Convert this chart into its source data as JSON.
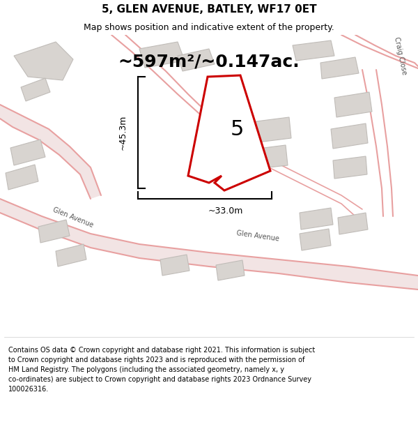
{
  "title": "5, GLEN AVENUE, BATLEY, WF17 0ET",
  "subtitle": "Map shows position and indicative extent of the property.",
  "area_label": "~597m²/~0.147ac.",
  "number_label": "5",
  "dim_height_label": "~45.3m",
  "dim_width_label": "~33.0m",
  "property_color": "#cc0000",
  "road_color_fill": "#f7e8e8",
  "road_color_line": "#e8a0a0",
  "building_fill": "#d8d4d0",
  "building_edge": "#c0bcb8",
  "bg_map_color": "#f8f6f4",
  "copyright_text": "Contains OS data © Crown copyright and database right 2021. This information is subject\nto Crown copyright and database rights 2023 and is reproduced with the permission of\nHM Land Registry. The polygons (including the associated geometry, namely x, y\nco-ordinates) are subject to Crown copyright and database rights 2023 Ordnance Survey\n100026316.",
  "road_label_bottom": "Glen Avenue",
  "road_label_left": "Glen Avenue",
  "craig_close_label": "Craig Close",
  "title_fontsize": 11,
  "subtitle_fontsize": 9,
  "area_fontsize": 18,
  "number_fontsize": 22,
  "dim_fontsize": 9,
  "road_fontsize": 7,
  "copyright_fontsize": 7
}
